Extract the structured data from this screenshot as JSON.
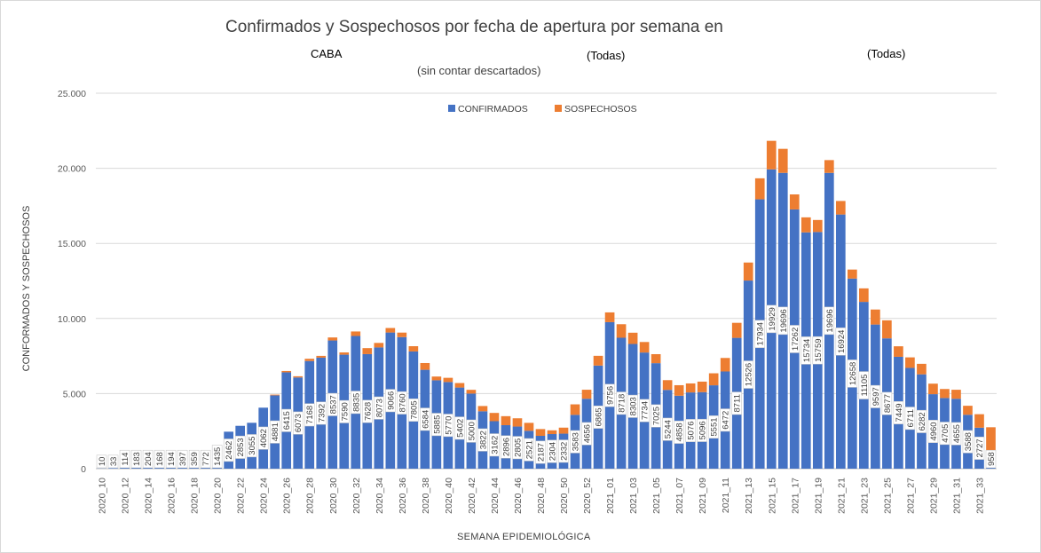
{
  "header": {
    "title": "Confirmados y Sospechosos por fecha de apertura por semana en",
    "filter_1": "CABA",
    "filter_2": "(Todas)",
    "filter_3": "(Todas)",
    "subtitle": "(sin contar descartados)"
  },
  "colors": {
    "confirmados": "#4472c4",
    "sospechosos": "#ed7d31",
    "grid": "#d9d9d9"
  },
  "chart_data": {
    "type": "bar",
    "stacked": true,
    "title": "Confirmados y Sospechosos por fecha de apertura por semana en",
    "xlabel": "SEMANA EPIDEMIOLÓGICA",
    "ylabel": "CONFORMADOS Y SOSPECHOSOS",
    "ylim": [
      0,
      25000
    ],
    "yticks": [
      0,
      5000,
      10000,
      15000,
      20000,
      25000
    ],
    "ytick_labels": [
      "0",
      "5.000",
      "10.000",
      "15.000",
      "20.000",
      "25.000"
    ],
    "grid": true,
    "legend_position": "top-center",
    "categories": [
      "2020_10",
      "2020_11",
      "2020_12",
      "2020_13",
      "2020_14",
      "2020_15",
      "2020_16",
      "2020_17",
      "2020_18",
      "2020_19",
      "2020_20",
      "2020_21",
      "2020_22",
      "2020_23",
      "2020_24",
      "2020_25",
      "2020_26",
      "2020_27",
      "2020_28",
      "2020_29",
      "2020_30",
      "2020_31",
      "2020_32",
      "2020_33",
      "2020_34",
      "2020_35",
      "2020_36",
      "2020_37",
      "2020_38",
      "2020_39",
      "2020_40",
      "2020_41",
      "2020_42",
      "2020_43",
      "2020_44",
      "2020_45",
      "2020_46",
      "2020_47",
      "2020_48",
      "2020_49",
      "2020_50",
      "2020_51",
      "2020_52",
      "2020_53",
      "2021_01",
      "2021_02",
      "2021_03",
      "2021_04",
      "2021_05",
      "2021_06",
      "2021_07",
      "2021_08",
      "2021_09",
      "2021_10",
      "2021_11",
      "2021_12",
      "2021_13",
      "2021_14",
      "2021_15",
      "2021_16",
      "2021_17",
      "2021_18",
      "2021_19",
      "2021_20",
      "2021_21",
      "2021_22",
      "2021_23",
      "2021_24",
      "2021_25",
      "2021_26",
      "2021_27",
      "2021_28",
      "2021_29",
      "2021_30",
      "2021_31",
      "2021_32",
      "2021_33",
      "2021_34"
    ],
    "x_tick_labels": [
      "2020_10",
      "2020_12",
      "2020_14",
      "2020_16",
      "2020_18",
      "2020_20",
      "2020_22",
      "2020_24",
      "2020_26",
      "2020_28",
      "2020_30",
      "2020_32",
      "2020_34",
      "2020_36",
      "2020_38",
      "2020_40",
      "2020_42",
      "2020_44",
      "2020_46",
      "2020_48",
      "2020_50",
      "2020_52",
      "2021_01",
      "2021_03",
      "2021_05",
      "2021_07",
      "2021_09",
      "2021_11",
      "2021_13",
      "2021_15",
      "2021_17",
      "2021_19",
      "2021_21",
      "2021_23",
      "2021_25",
      "2021_27",
      "2021_29",
      "2021_31",
      "2021_33"
    ],
    "series": [
      {
        "name": "CONFIRMADOS",
        "values": [
          10,
          33,
          114,
          183,
          204,
          168,
          194,
          397,
          359,
          772,
          1435,
          2462,
          2853,
          3055,
          4062,
          4881,
          6415,
          6073,
          7168,
          7392,
          8537,
          7590,
          8835,
          7628,
          8073,
          9066,
          8760,
          7805,
          6584,
          5885,
          5770,
          5402,
          5000,
          3822,
          3162,
          2896,
          2805,
          2521,
          2187,
          2304,
          2332,
          3583,
          4656,
          6865,
          9756,
          8718,
          8303,
          7734,
          7025,
          5244,
          4858,
          5076,
          5096,
          5551,
          6472,
          8711,
          12526,
          17934,
          19929,
          19696,
          17262,
          15734,
          15759,
          19696,
          16924,
          12658,
          11105,
          9597,
          8677,
          7449,
          6711,
          6282,
          4960,
          4705,
          4655,
          3588,
          2727,
          958
        ]
      },
      {
        "name": "SOSPECHOSOS",
        "values": [
          0,
          0,
          0,
          0,
          0,
          0,
          0,
          0,
          0,
          0,
          0,
          0,
          0,
          0,
          0,
          50,
          90,
          80,
          150,
          120,
          200,
          150,
          300,
          400,
          300,
          300,
          300,
          350,
          450,
          250,
          280,
          300,
          250,
          350,
          550,
          600,
          550,
          530,
          450,
          250,
          400,
          700,
          600,
          650,
          650,
          900,
          750,
          700,
          600,
          650,
          700,
          600,
          700,
          800,
          900,
          1000,
          1200,
          1400,
          1900,
          1600,
          1000,
          1000,
          800,
          850,
          900,
          600,
          900,
          1000,
          1200,
          700,
          700,
          700,
          700,
          600,
          600,
          600,
          900,
          1800
        ]
      }
    ],
    "data_labels": "confirmados, rotated vertical, inside bars"
  }
}
